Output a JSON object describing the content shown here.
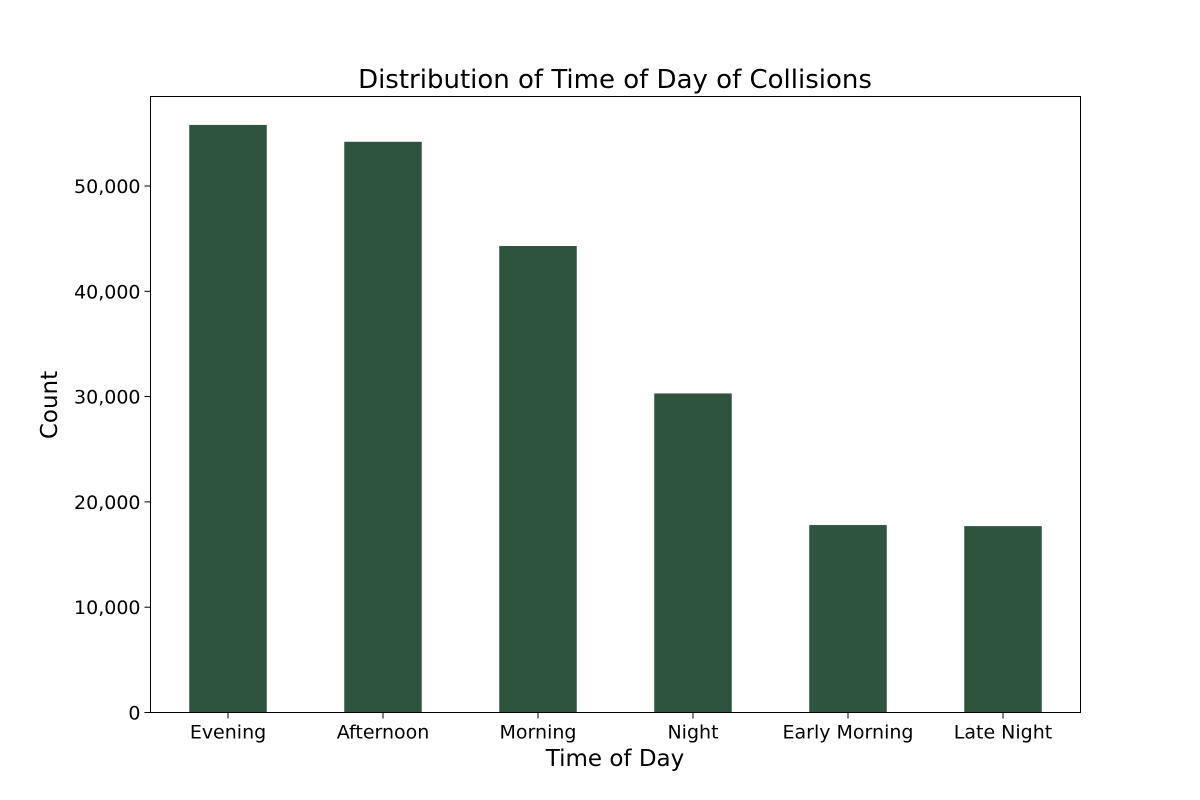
{
  "chart_data": {
    "type": "bar",
    "title": "Distribution of Time of Day of Collisions",
    "xlabel": "Time of Day",
    "ylabel": "Count",
    "categories": [
      "Evening",
      "Afternoon",
      "Morning",
      "Night",
      "Early Morning",
      "Late Night"
    ],
    "values": [
      55800,
      54200,
      44300,
      30300,
      17800,
      17700
    ],
    "ylim": [
      0,
      58500
    ],
    "yticks": [
      0,
      10000,
      20000,
      30000,
      40000,
      50000
    ],
    "ytick_labels": [
      "0",
      "10,000",
      "20,000",
      "30,000",
      "40,000",
      "50,000"
    ],
    "grid": false,
    "legend": "none",
    "bar_color": "#2e5440"
  }
}
